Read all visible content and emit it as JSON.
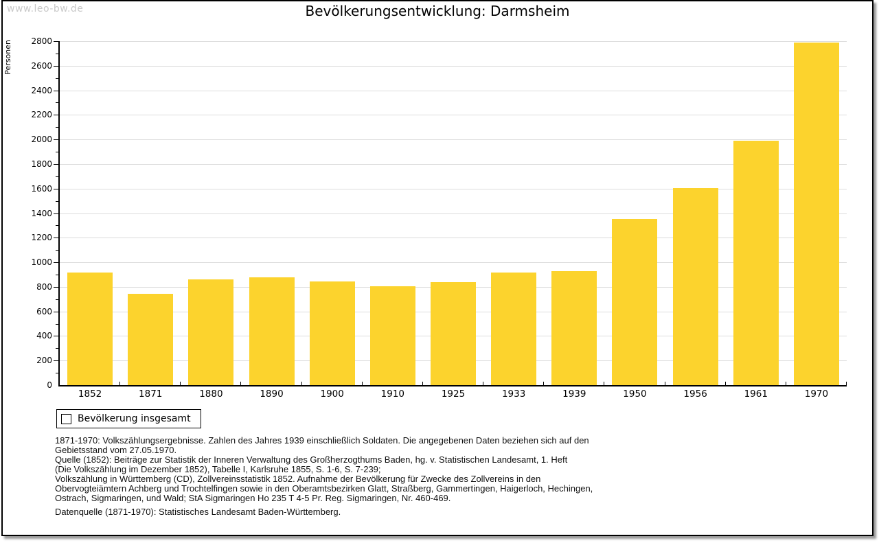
{
  "watermark": "www.leo-bw.de",
  "chart_data": {
    "type": "bar",
    "title": "Bevölkerungsentwicklung: Darmsheim",
    "xlabel": "",
    "ylabel": "Personen",
    "categories": [
      "1852",
      "1871",
      "1880",
      "1890",
      "1900",
      "1910",
      "1925",
      "1933",
      "1939",
      "1950",
      "1956",
      "1961",
      "1970"
    ],
    "values": [
      915,
      745,
      862,
      880,
      842,
      807,
      838,
      918,
      930,
      1355,
      1605,
      1992,
      2790
    ],
    "series_name": "Bevölkerung insgesamt",
    "ylim": [
      0,
      2800
    ],
    "ytick_step": 200,
    "yminor_step": 100,
    "grid": "horizontal-major-only",
    "bar_color": "#FCD32D",
    "gridline_color": "#dcdcdc",
    "legend_position": "bottom-left"
  },
  "legend": {
    "label": "Bevölkerung insgesamt",
    "swatch_color": "#FCD32D"
  },
  "footer": {
    "source_text": "1871-1970: Volkszählungsergebnisse. Zahlen des Jahres 1939 einschließlich Soldaten. Die angegebenen Daten beziehen sich auf den\nGebietsstand vom 27.05.1970.\nQuelle (1852): Beiträge zur Statistik der Inneren Verwaltung des Großherzogthums Baden, hg. v. Statistischen Landesamt, 1. Heft\n(Die Volkszählung im Dezember 1852), Tabelle I, Karlsruhe 1855, S. 1-6, S. 7-239;\nVolkszählung in Württemberg (CD), Zollvereinsstatistik 1852. Aufnahme der Bevölkerung für Zwecke des Zollvereins in den\nObervogteiämtern Achberg und Trochtelfingen sowie in den Oberamtsbezirken Glatt, Straßberg, Gammertingen, Haigerloch, Hechingen,\nOstrach, Sigmaringen, und Wald; StA Sigmaringen Ho 235 T 4-5 Pr. Reg. Sigmaringen, Nr. 460-469.",
    "datenquelle": "Datenquelle (1871-1970): Statistisches Landesamt Baden-Württemberg."
  }
}
